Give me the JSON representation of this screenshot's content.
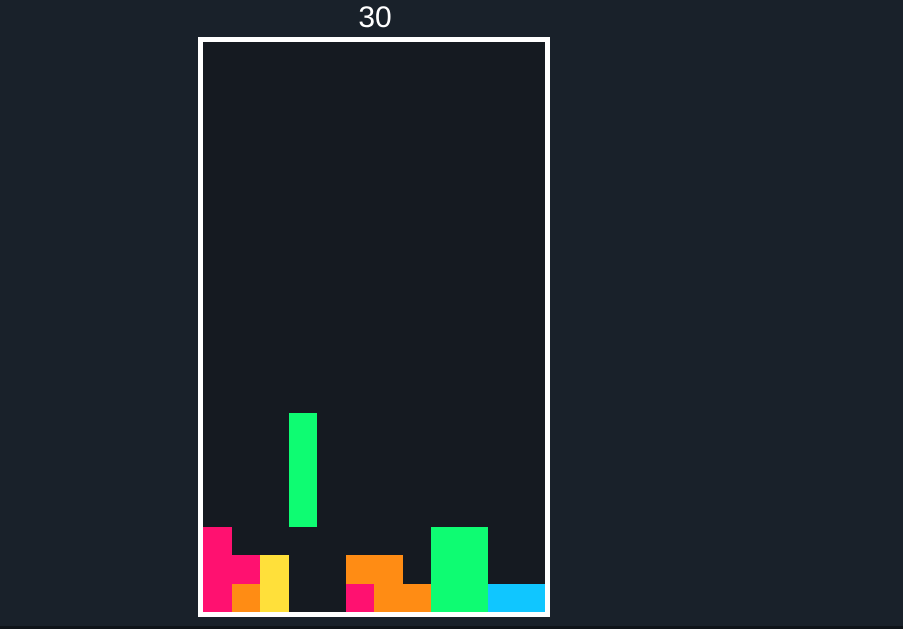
{
  "score": "30",
  "board": {
    "cols": 12,
    "rows": 20
  },
  "colors": {
    "pink": "#ff1170",
    "orange": "#ff8c14",
    "yellow": "#ffe03a",
    "green": "#0efc72",
    "cyan": "#10c6ff",
    "empty": "#151a21",
    "border": "#ffffff",
    "background": "#19212a"
  },
  "active_piece": {
    "type": "I",
    "color": "green",
    "cells": [
      [
        3,
        13
      ],
      [
        3,
        14
      ],
      [
        3,
        15
      ],
      [
        3,
        16
      ]
    ]
  },
  "locked_cells": [
    {
      "col": 0,
      "row": 17,
      "color": "pink"
    },
    {
      "col": 0,
      "row": 18,
      "color": "pink"
    },
    {
      "col": 1,
      "row": 18,
      "color": "pink"
    },
    {
      "col": 0,
      "row": 19,
      "color": "pink"
    },
    {
      "col": 1,
      "row": 19,
      "color": "orange"
    },
    {
      "col": 2,
      "row": 18,
      "color": "yellow"
    },
    {
      "col": 2,
      "row": 19,
      "color": "yellow"
    },
    {
      "col": 5,
      "row": 18,
      "color": "orange"
    },
    {
      "col": 6,
      "row": 18,
      "color": "orange"
    },
    {
      "col": 5,
      "row": 19,
      "color": "pink"
    },
    {
      "col": 6,
      "row": 19,
      "color": "orange"
    },
    {
      "col": 7,
      "row": 19,
      "color": "orange"
    },
    {
      "col": 8,
      "row": 17,
      "color": "green"
    },
    {
      "col": 9,
      "row": 17,
      "color": "green"
    },
    {
      "col": 8,
      "row": 18,
      "color": "green"
    },
    {
      "col": 9,
      "row": 18,
      "color": "green"
    },
    {
      "col": 8,
      "row": 19,
      "color": "green"
    },
    {
      "col": 9,
      "row": 19,
      "color": "green"
    },
    {
      "col": 10,
      "row": 19,
      "color": "cyan"
    },
    {
      "col": 11,
      "row": 19,
      "color": "cyan"
    }
  ]
}
